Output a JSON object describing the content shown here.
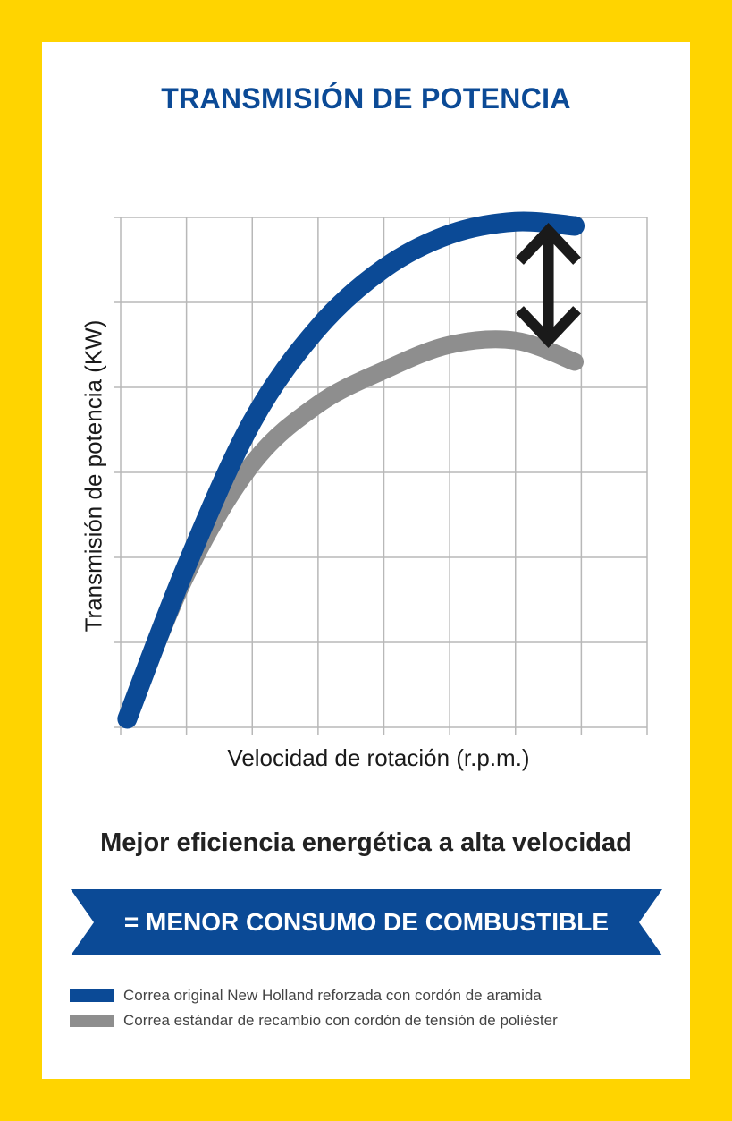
{
  "title": "TRANSMISIÓN DE POTENCIA",
  "headline": "Mejor eficiencia energética a alta velocidad",
  "banner": {
    "text": "= MENOR CONSUMO DE COMBUSTIBLE"
  },
  "colors": {
    "background": "#FFD400",
    "accent_blue": "#0B4A96",
    "series_gray": "#8E8E8E",
    "arrow": "#1A1A1A",
    "grid": "#B8B8B8"
  },
  "legend": [
    {
      "label": "Correa original New Holland reforzada con cordón de aramida",
      "color": "#0B4A96"
    },
    {
      "label": "Correa estándar de recambio con cordón de tensión de poliéster",
      "color": "#8E8E8E"
    }
  ],
  "chart_data": {
    "type": "line",
    "title": "",
    "xlabel": "Velocidad de rotación (r.p.m.)",
    "ylabel": "Transmisión de potencia (KW)",
    "xlim": [
      0,
      8
    ],
    "ylim": [
      0,
      6
    ],
    "grid": true,
    "tick_labels": false,
    "legend_position": "bottom",
    "series": [
      {
        "color": "#0B4A96",
        "x": [
          0.1,
          1.0,
          2.0,
          3.0,
          4.0,
          5.0,
          6.0,
          6.9
        ],
        "y": [
          0.1,
          1.9,
          3.6,
          4.7,
          5.4,
          5.8,
          5.95,
          5.9
        ]
      },
      {
        "color": "#8E8E8E",
        "x": [
          0.1,
          1.0,
          2.0,
          3.0,
          4.0,
          5.0,
          6.0,
          6.9
        ],
        "y": [
          0.1,
          1.8,
          3.1,
          3.8,
          4.2,
          4.5,
          4.55,
          4.3
        ]
      }
    ],
    "annotation": {
      "type": "double-arrow",
      "x": 6.5,
      "from_y": 4.45,
      "to_y": 5.95
    }
  }
}
